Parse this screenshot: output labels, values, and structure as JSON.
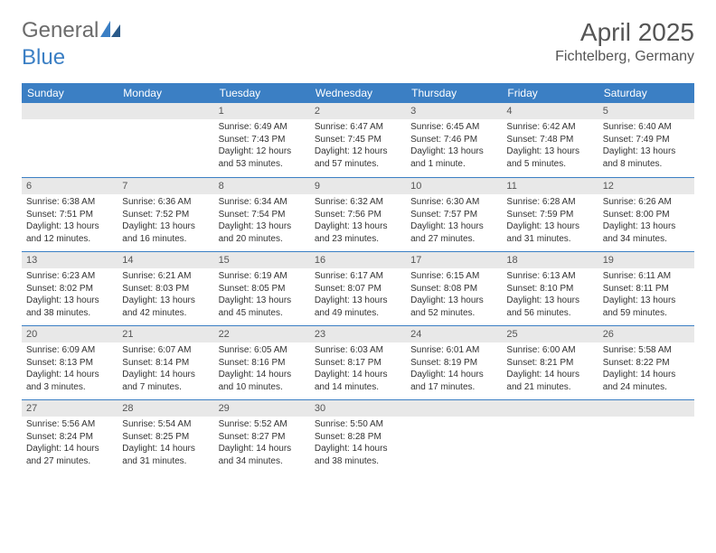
{
  "logo": {
    "text_gray": "General",
    "text_blue": "Blue"
  },
  "title": "April 2025",
  "location": "Fichtelberg, Germany",
  "colors": {
    "header_bg": "#3b7fc4",
    "header_text": "#ffffff",
    "daynum_bg": "#e8e8e8",
    "week_divider": "#3b7fc4",
    "body_text": "#333333",
    "title_text": "#555555"
  },
  "typography": {
    "title_fontsize": 28,
    "location_fontsize": 16,
    "dayheader_fontsize": 12,
    "cell_fontsize": 10
  },
  "day_headers": [
    "Sunday",
    "Monday",
    "Tuesday",
    "Wednesday",
    "Thursday",
    "Friday",
    "Saturday"
  ],
  "weeks": [
    [
      {
        "n": "",
        "sr": "",
        "ss": "",
        "dl": ""
      },
      {
        "n": "",
        "sr": "",
        "ss": "",
        "dl": ""
      },
      {
        "n": "1",
        "sr": "Sunrise: 6:49 AM",
        "ss": "Sunset: 7:43 PM",
        "dl": "Daylight: 12 hours and 53 minutes."
      },
      {
        "n": "2",
        "sr": "Sunrise: 6:47 AM",
        "ss": "Sunset: 7:45 PM",
        "dl": "Daylight: 12 hours and 57 minutes."
      },
      {
        "n": "3",
        "sr": "Sunrise: 6:45 AM",
        "ss": "Sunset: 7:46 PM",
        "dl": "Daylight: 13 hours and 1 minute."
      },
      {
        "n": "4",
        "sr": "Sunrise: 6:42 AM",
        "ss": "Sunset: 7:48 PM",
        "dl": "Daylight: 13 hours and 5 minutes."
      },
      {
        "n": "5",
        "sr": "Sunrise: 6:40 AM",
        "ss": "Sunset: 7:49 PM",
        "dl": "Daylight: 13 hours and 8 minutes."
      }
    ],
    [
      {
        "n": "6",
        "sr": "Sunrise: 6:38 AM",
        "ss": "Sunset: 7:51 PM",
        "dl": "Daylight: 13 hours and 12 minutes."
      },
      {
        "n": "7",
        "sr": "Sunrise: 6:36 AM",
        "ss": "Sunset: 7:52 PM",
        "dl": "Daylight: 13 hours and 16 minutes."
      },
      {
        "n": "8",
        "sr": "Sunrise: 6:34 AM",
        "ss": "Sunset: 7:54 PM",
        "dl": "Daylight: 13 hours and 20 minutes."
      },
      {
        "n": "9",
        "sr": "Sunrise: 6:32 AM",
        "ss": "Sunset: 7:56 PM",
        "dl": "Daylight: 13 hours and 23 minutes."
      },
      {
        "n": "10",
        "sr": "Sunrise: 6:30 AM",
        "ss": "Sunset: 7:57 PM",
        "dl": "Daylight: 13 hours and 27 minutes."
      },
      {
        "n": "11",
        "sr": "Sunrise: 6:28 AM",
        "ss": "Sunset: 7:59 PM",
        "dl": "Daylight: 13 hours and 31 minutes."
      },
      {
        "n": "12",
        "sr": "Sunrise: 6:26 AM",
        "ss": "Sunset: 8:00 PM",
        "dl": "Daylight: 13 hours and 34 minutes."
      }
    ],
    [
      {
        "n": "13",
        "sr": "Sunrise: 6:23 AM",
        "ss": "Sunset: 8:02 PM",
        "dl": "Daylight: 13 hours and 38 minutes."
      },
      {
        "n": "14",
        "sr": "Sunrise: 6:21 AM",
        "ss": "Sunset: 8:03 PM",
        "dl": "Daylight: 13 hours and 42 minutes."
      },
      {
        "n": "15",
        "sr": "Sunrise: 6:19 AM",
        "ss": "Sunset: 8:05 PM",
        "dl": "Daylight: 13 hours and 45 minutes."
      },
      {
        "n": "16",
        "sr": "Sunrise: 6:17 AM",
        "ss": "Sunset: 8:07 PM",
        "dl": "Daylight: 13 hours and 49 minutes."
      },
      {
        "n": "17",
        "sr": "Sunrise: 6:15 AM",
        "ss": "Sunset: 8:08 PM",
        "dl": "Daylight: 13 hours and 52 minutes."
      },
      {
        "n": "18",
        "sr": "Sunrise: 6:13 AM",
        "ss": "Sunset: 8:10 PM",
        "dl": "Daylight: 13 hours and 56 minutes."
      },
      {
        "n": "19",
        "sr": "Sunrise: 6:11 AM",
        "ss": "Sunset: 8:11 PM",
        "dl": "Daylight: 13 hours and 59 minutes."
      }
    ],
    [
      {
        "n": "20",
        "sr": "Sunrise: 6:09 AM",
        "ss": "Sunset: 8:13 PM",
        "dl": "Daylight: 14 hours and 3 minutes."
      },
      {
        "n": "21",
        "sr": "Sunrise: 6:07 AM",
        "ss": "Sunset: 8:14 PM",
        "dl": "Daylight: 14 hours and 7 minutes."
      },
      {
        "n": "22",
        "sr": "Sunrise: 6:05 AM",
        "ss": "Sunset: 8:16 PM",
        "dl": "Daylight: 14 hours and 10 minutes."
      },
      {
        "n": "23",
        "sr": "Sunrise: 6:03 AM",
        "ss": "Sunset: 8:17 PM",
        "dl": "Daylight: 14 hours and 14 minutes."
      },
      {
        "n": "24",
        "sr": "Sunrise: 6:01 AM",
        "ss": "Sunset: 8:19 PM",
        "dl": "Daylight: 14 hours and 17 minutes."
      },
      {
        "n": "25",
        "sr": "Sunrise: 6:00 AM",
        "ss": "Sunset: 8:21 PM",
        "dl": "Daylight: 14 hours and 21 minutes."
      },
      {
        "n": "26",
        "sr": "Sunrise: 5:58 AM",
        "ss": "Sunset: 8:22 PM",
        "dl": "Daylight: 14 hours and 24 minutes."
      }
    ],
    [
      {
        "n": "27",
        "sr": "Sunrise: 5:56 AM",
        "ss": "Sunset: 8:24 PM",
        "dl": "Daylight: 14 hours and 27 minutes."
      },
      {
        "n": "28",
        "sr": "Sunrise: 5:54 AM",
        "ss": "Sunset: 8:25 PM",
        "dl": "Daylight: 14 hours and 31 minutes."
      },
      {
        "n": "29",
        "sr": "Sunrise: 5:52 AM",
        "ss": "Sunset: 8:27 PM",
        "dl": "Daylight: 14 hours and 34 minutes."
      },
      {
        "n": "30",
        "sr": "Sunrise: 5:50 AM",
        "ss": "Sunset: 8:28 PM",
        "dl": "Daylight: 14 hours and 38 minutes."
      },
      {
        "n": "",
        "sr": "",
        "ss": "",
        "dl": ""
      },
      {
        "n": "",
        "sr": "",
        "ss": "",
        "dl": ""
      },
      {
        "n": "",
        "sr": "",
        "ss": "",
        "dl": ""
      }
    ]
  ]
}
